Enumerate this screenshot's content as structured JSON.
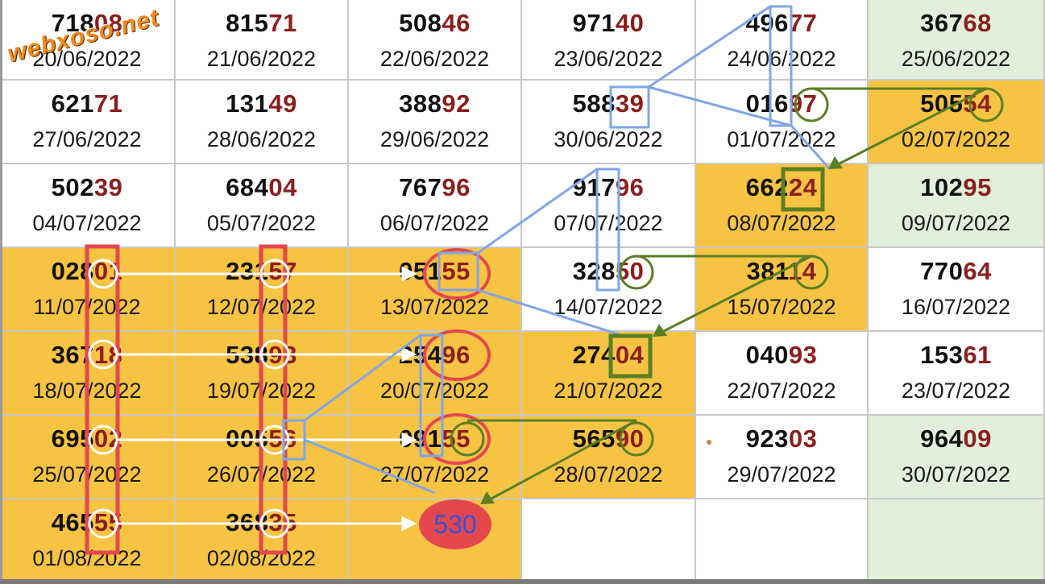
{
  "watermark": "webxoso.net",
  "result_number": "530",
  "colors": {
    "highlight_yellow": "#f6c343",
    "pale_green": "#e2efdb",
    "tail_red": "#8b1e1e",
    "blue_box": "#7fa6e8",
    "green_mark": "#5a7f24",
    "red_mark": "#e4474e"
  },
  "rows": [
    [
      {
        "num": "718",
        "tail": "08",
        "date": "20/06/2022",
        "bg": "white"
      },
      {
        "num": "815",
        "tail": "71",
        "date": "21/06/2022",
        "bg": "white"
      },
      {
        "num": "508",
        "tail": "46",
        "date": "22/06/2022",
        "bg": "white"
      },
      {
        "num": "971",
        "tail": "40",
        "date": "23/06/2022",
        "bg": "white"
      },
      {
        "num": "496",
        "tail": "77",
        "date": "24/06/2022",
        "bg": "white"
      },
      {
        "num": "367",
        "tail": "68",
        "date": "25/06/2022",
        "bg": "green"
      }
    ],
    [
      {
        "num": "621",
        "tail": "71",
        "date": "27/06/2022",
        "bg": "white"
      },
      {
        "num": "131",
        "tail": "49",
        "date": "28/06/2022",
        "bg": "white"
      },
      {
        "num": "388",
        "tail": "92",
        "date": "29/06/2022",
        "bg": "white"
      },
      {
        "num": "588",
        "tail": "39",
        "date": "30/06/2022",
        "bg": "white"
      },
      {
        "num": "016",
        "tail": "97",
        "date": "01/07/2022",
        "bg": "white"
      },
      {
        "num": "505",
        "tail": "54",
        "date": "02/07/2022",
        "bg": "yellow"
      }
    ],
    [
      {
        "num": "502",
        "tail": "39",
        "date": "04/07/2022",
        "bg": "white"
      },
      {
        "num": "684",
        "tail": "04",
        "date": "05/07/2022",
        "bg": "white"
      },
      {
        "num": "767",
        "tail": "96",
        "date": "06/07/2022",
        "bg": "white"
      },
      {
        "num": "917",
        "tail": "96",
        "date": "07/07/2022",
        "bg": "white"
      },
      {
        "num": "662",
        "tail": "24",
        "date": "08/07/2022",
        "bg": "yellow"
      },
      {
        "num": "102",
        "tail": "95",
        "date": "09/07/2022",
        "bg": "green"
      }
    ],
    [
      {
        "num": "028",
        "tail": "01",
        "date": "11/07/2022",
        "bg": "yellow"
      },
      {
        "num": "231",
        "tail": "57",
        "date": "12/07/2022",
        "bg": "yellow"
      },
      {
        "num": "051",
        "tail": "55",
        "date": "13/07/2022",
        "bg": "yellow"
      },
      {
        "num": "328",
        "tail": "50",
        "date": "14/07/2022",
        "bg": "white"
      },
      {
        "num": "381",
        "tail": "14",
        "date": "15/07/2022",
        "bg": "yellow"
      },
      {
        "num": "770",
        "tail": "64",
        "date": "16/07/2022",
        "bg": "white"
      }
    ],
    [
      {
        "num": "367",
        "tail": "18",
        "date": "18/07/2022",
        "bg": "yellow"
      },
      {
        "num": "538",
        "tail": "93",
        "date": "19/07/2022",
        "bg": "yellow"
      },
      {
        "num": "254",
        "tail": "96",
        "date": "20/07/2022",
        "bg": "yellow"
      },
      {
        "num": "274",
        "tail": "04",
        "date": "21/07/2022",
        "bg": "yellow"
      },
      {
        "num": "040",
        "tail": "93",
        "date": "22/07/2022",
        "bg": "white"
      },
      {
        "num": "153",
        "tail": "61",
        "date": "23/07/2022",
        "bg": "white"
      }
    ],
    [
      {
        "num": "695",
        "tail": "02",
        "date": "25/07/2022",
        "bg": "yellow"
      },
      {
        "num": "005",
        "tail": "56",
        "date": "26/07/2022",
        "bg": "yellow"
      },
      {
        "num": "091",
        "tail": "55",
        "date": "27/07/2022",
        "bg": "yellow"
      },
      {
        "num": "565",
        "tail": "90",
        "date": "28/07/2022",
        "bg": "yellow"
      },
      {
        "num": "923",
        "tail": "03",
        "date": "29/07/2022",
        "bg": "white"
      },
      {
        "num": "964",
        "tail": "09",
        "date": "30/07/2022",
        "bg": "green"
      }
    ],
    [
      {
        "num": "465",
        "tail": "55",
        "date": "01/08/2022",
        "bg": "yellow"
      },
      {
        "num": "368",
        "tail": "35",
        "date": "02/08/2022",
        "bg": "yellow"
      },
      {
        "num": "",
        "tail": "",
        "date": "",
        "bg": "yellow"
      },
      {
        "num": "",
        "tail": "",
        "date": "",
        "bg": "white"
      },
      {
        "num": "",
        "tail": "",
        "date": "",
        "bg": "white"
      },
      {
        "num": "",
        "tail": "",
        "date": "",
        "bg": "green"
      }
    ]
  ]
}
